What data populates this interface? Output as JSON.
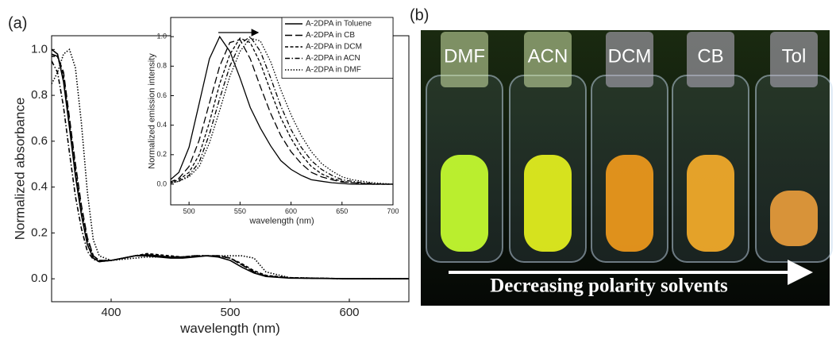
{
  "chart_data": [
    {
      "type": "line",
      "label": "(a)",
      "x_label": "wavelength (nm)",
      "y_label": "Normalized absorbance",
      "x": [
        350,
        355,
        360,
        365,
        370,
        375,
        380,
        385,
        390,
        400,
        410,
        420,
        430,
        440,
        450,
        460,
        470,
        480,
        490,
        500,
        510,
        520,
        530,
        550,
        600,
        650
      ],
      "xlim": [
        350,
        650
      ],
      "ylim": [
        -0.1,
        1.06
      ],
      "xticks": [
        400,
        500,
        600
      ],
      "yticks": [
        {
          "value": 0,
          "label": "0.0"
        },
        {
          "value": 0.2,
          "label": "0.2"
        },
        {
          "value": 0.4,
          "label": "0.4"
        },
        {
          "value": 0.6,
          "label": "0.6"
        },
        {
          "value": 0.8,
          "label": "0.8"
        },
        {
          "value": 1,
          "label": "1.0"
        }
      ],
      "series": [
        {
          "color": "#000",
          "dash": "solid",
          "values": [
            1.0,
            0.98,
            0.86,
            0.66,
            0.45,
            0.28,
            0.15,
            0.09,
            0.075,
            0.08,
            0.09,
            0.1,
            0.1,
            0.095,
            0.09,
            0.09,
            0.095,
            0.1,
            0.095,
            0.08,
            0.05,
            0.025,
            0.01,
            0.003,
            0,
            0
          ]
        },
        {
          "color": "#000",
          "dash": "long",
          "values": [
            0.98,
            0.97,
            0.9,
            0.7,
            0.5,
            0.32,
            0.18,
            0.1,
            0.08,
            0.08,
            0.09,
            0.1,
            0.105,
            0.1,
            0.095,
            0.095,
            0.1,
            0.1,
            0.1,
            0.09,
            0.06,
            0.03,
            0.012,
            0.004,
            0,
            0
          ]
        },
        {
          "color": "#000",
          "dash": "short",
          "values": [
            0.97,
            0.97,
            0.88,
            0.68,
            0.48,
            0.3,
            0.17,
            0.1,
            0.08,
            0.08,
            0.09,
            0.1,
            0.11,
            0.105,
            0.1,
            0.095,
            0.1,
            0.1,
            0.1,
            0.09,
            0.065,
            0.035,
            0.015,
            0.005,
            0,
            0
          ]
        },
        {
          "color": "#000",
          "dash": "dashdot",
          "values": [
            0.95,
            0.9,
            0.75,
            0.55,
            0.36,
            0.22,
            0.12,
            0.085,
            0.075,
            0.08,
            0.09,
            0.1,
            0.105,
            0.1,
            0.095,
            0.095,
            0.1,
            0.1,
            0.1,
            0.09,
            0.06,
            0.03,
            0.012,
            0.004,
            0,
            0
          ]
        },
        {
          "color": "#000",
          "dash": "dot",
          "values": [
            0.85,
            0.9,
            0.98,
            1.0,
            0.92,
            0.68,
            0.38,
            0.17,
            0.1,
            0.08,
            0.085,
            0.09,
            0.095,
            0.095,
            0.095,
            0.095,
            0.1,
            0.1,
            0.1,
            0.1,
            0.1,
            0.09,
            0.03,
            0.005,
            0,
            0
          ]
        }
      ]
    },
    {
      "type": "line",
      "x_label": "wavelength (nm)",
      "y_label": "Normalized emission intensity",
      "legend": "top-right",
      "x": [
        480,
        490,
        500,
        510,
        520,
        530,
        540,
        550,
        560,
        570,
        580,
        590,
        600,
        610,
        620,
        630,
        640,
        650,
        660,
        670,
        680,
        690,
        700
      ],
      "xlim": [
        482,
        700
      ],
      "ylim": [
        -0.14,
        1.13
      ],
      "xticks": [
        500,
        550,
        600,
        650,
        700
      ],
      "yticks": [
        {
          "value": 0,
          "label": "0.0"
        },
        {
          "value": 0.2,
          "label": "0.2"
        },
        {
          "value": 0.4,
          "label": "0.4"
        },
        {
          "value": 0.6,
          "label": "0.6"
        },
        {
          "value": 0.8,
          "label": "0.8"
        },
        {
          "value": 1,
          "label": "1.0"
        }
      ],
      "series": [
        {
          "name": "A-2DPA in Toluene",
          "color": "#000",
          "dash": "solid",
          "values": [
            0.02,
            0.08,
            0.25,
            0.55,
            0.85,
            1.0,
            0.9,
            0.72,
            0.52,
            0.38,
            0.26,
            0.16,
            0.1,
            0.06,
            0.03,
            0.02,
            0.01,
            0.005,
            0,
            0,
            0,
            0,
            0
          ]
        },
        {
          "name": "A-2DPA in CB",
          "color": "#000",
          "dash": "long",
          "values": [
            0.01,
            0.04,
            0.12,
            0.3,
            0.55,
            0.8,
            0.96,
            0.98,
            0.85,
            0.66,
            0.48,
            0.33,
            0.22,
            0.14,
            0.08,
            0.05,
            0.03,
            0.015,
            0.01,
            0.005,
            0,
            0,
            0
          ]
        },
        {
          "name": "A-2DPA in DCM",
          "color": "#000",
          "dash": "short",
          "values": [
            0.01,
            0.03,
            0.08,
            0.2,
            0.42,
            0.68,
            0.88,
            0.99,
            0.96,
            0.82,
            0.63,
            0.45,
            0.31,
            0.2,
            0.12,
            0.07,
            0.04,
            0.02,
            0.01,
            0.005,
            0,
            0,
            0
          ]
        },
        {
          "name": "A-2DPA in ACN",
          "color": "#000",
          "dash": "dashdot",
          "values": [
            0.005,
            0.02,
            0.06,
            0.15,
            0.34,
            0.58,
            0.8,
            0.95,
            1.0,
            0.9,
            0.72,
            0.53,
            0.37,
            0.25,
            0.16,
            0.1,
            0.06,
            0.03,
            0.02,
            0.01,
            0.005,
            0,
            0
          ]
        },
        {
          "name": "A-2DPA in DMF",
          "color": "#000",
          "dash": "dot",
          "values": [
            0.005,
            0.02,
            0.05,
            0.12,
            0.28,
            0.5,
            0.73,
            0.9,
            0.99,
            0.97,
            0.83,
            0.64,
            0.47,
            0.33,
            0.22,
            0.14,
            0.09,
            0.05,
            0.03,
            0.02,
            0.01,
            0.005,
            0
          ]
        }
      ]
    }
  ],
  "photo": {
    "label": "(b)",
    "caption": "Decreasing polarity solvents",
    "vials": [
      {
        "label": "DMF",
        "color": "#c8ff30"
      },
      {
        "label": "ACN",
        "color": "#e6f21e"
      },
      {
        "label": "DCM",
        "color": "#f09a1c"
      },
      {
        "label": "CB",
        "color": "#f5ac2a"
      },
      {
        "label": "Tol",
        "color": "#e89c3c"
      }
    ]
  }
}
